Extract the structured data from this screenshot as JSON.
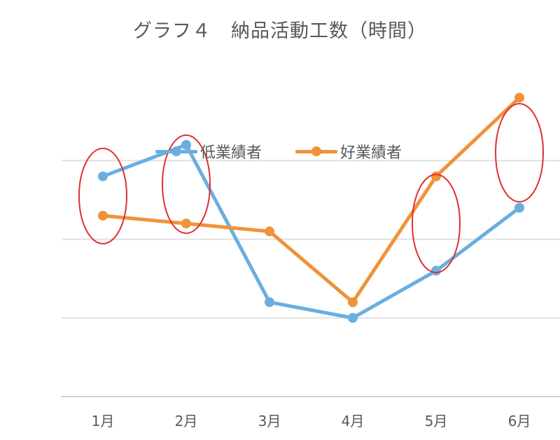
{
  "chart_data": {
    "type": "line",
    "title": "グラフ４　納品活動工数（時間）",
    "categories": [
      "1月",
      "2月",
      "3月",
      "4月",
      "5月",
      "6月"
    ],
    "series": [
      {
        "name": "低業績者",
        "color": "#6aaee0",
        "values": [
          2.8,
          3.2,
          1.2,
          1.0,
          1.6,
          2.4
        ]
      },
      {
        "name": "好業績者",
        "color": "#f0923a",
        "values": [
          2.3,
          2.2,
          2.1,
          1.2,
          2.8,
          3.8
        ]
      }
    ],
    "ylim": [
      0,
      4
    ],
    "y_gridlines": [
      1,
      2,
      3,
      4
    ],
    "y_tick_labels_visible": false,
    "legend_position": "top-center",
    "grid": true,
    "highlights": {
      "color": "#e03030",
      "shape": "ellipse",
      "categories": [
        "1月",
        "2月",
        "5月",
        "6月"
      ]
    }
  }
}
